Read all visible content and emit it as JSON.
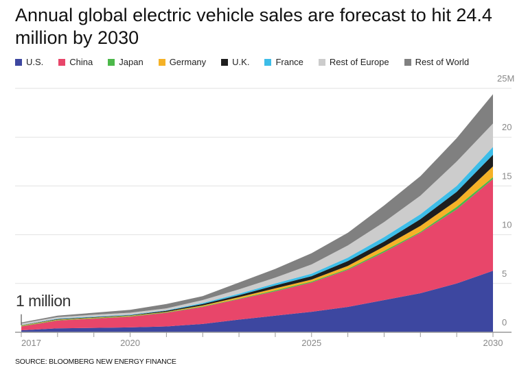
{
  "title": "Annual global electric vehicle sales are forecast to hit 24.4 million by 2030",
  "source": "SOURCE: BLOOMBERG NEW ENERGY FINANCE",
  "chart_data": {
    "type": "area",
    "stacked": true,
    "title": "Annual global electric vehicle sales are forecast to hit 24.4 million by 2030",
    "annotation": "1 million",
    "x": [
      2017,
      2018,
      2019,
      2020,
      2021,
      2022,
      2023,
      2024,
      2025,
      2026,
      2027,
      2028,
      2029,
      2030
    ],
    "xticks": [
      2017,
      2020,
      2025,
      2030
    ],
    "xtick_labels": [
      "2017",
      "2020",
      "2025",
      "2030"
    ],
    "ylim": [
      0,
      25
    ],
    "yticks": [
      0,
      5,
      10,
      15,
      20,
      25
    ],
    "ytick_labels": [
      "0",
      "5",
      "10",
      "15",
      "20",
      "25M"
    ],
    "grid": true,
    "legend": "top",
    "series": [
      {
        "name": "U.S.",
        "color": "#3d47a0",
        "values": [
          0.2,
          0.4,
          0.45,
          0.5,
          0.6,
          0.85,
          1.3,
          1.7,
          2.1,
          2.6,
          3.3,
          4.0,
          5.0,
          6.3
        ]
      },
      {
        "name": "China",
        "color": "#e8466a",
        "values": [
          0.4,
          0.8,
          0.95,
          1.1,
          1.4,
          1.75,
          2.1,
          2.5,
          3.0,
          3.8,
          4.9,
          6.2,
          7.6,
          9.4
        ]
      },
      {
        "name": "Japan",
        "color": "#4cb84a",
        "values": [
          0.05,
          0.05,
          0.05,
          0.05,
          0.05,
          0.05,
          0.05,
          0.1,
          0.1,
          0.1,
          0.15,
          0.1,
          0.25,
          0.2
        ]
      },
      {
        "name": "Germany",
        "color": "#f5b227",
        "values": [
          0.05,
          0.05,
          0.05,
          0.05,
          0.05,
          0.1,
          0.15,
          0.2,
          0.2,
          0.3,
          0.45,
          0.6,
          0.65,
          1.1
        ]
      },
      {
        "name": "U.K.",
        "color": "#1e1e1e",
        "values": [
          0.02,
          0.05,
          0.05,
          0.05,
          0.1,
          0.15,
          0.2,
          0.3,
          0.35,
          0.5,
          0.5,
          0.7,
          0.9,
          1.2
        ]
      },
      {
        "name": "France",
        "color": "#3dbde8",
        "values": [
          0.03,
          0.05,
          0.05,
          0.05,
          0.05,
          0.1,
          0.15,
          0.2,
          0.25,
          0.35,
          0.45,
          0.5,
          0.6,
          0.8
        ]
      },
      {
        "name": "Rest of Europe",
        "color": "#cccccc",
        "values": [
          0.15,
          0.15,
          0.2,
          0.2,
          0.2,
          0.3,
          0.45,
          0.6,
          0.95,
          1.25,
          1.55,
          1.9,
          2.5,
          2.4
        ]
      },
      {
        "name": "Rest of World",
        "color": "#808080",
        "values": [
          0.1,
          0.15,
          0.2,
          0.3,
          0.45,
          0.4,
          0.7,
          0.9,
          1.15,
          1.3,
          1.7,
          2.0,
          2.4,
          3.0
        ]
      }
    ]
  }
}
